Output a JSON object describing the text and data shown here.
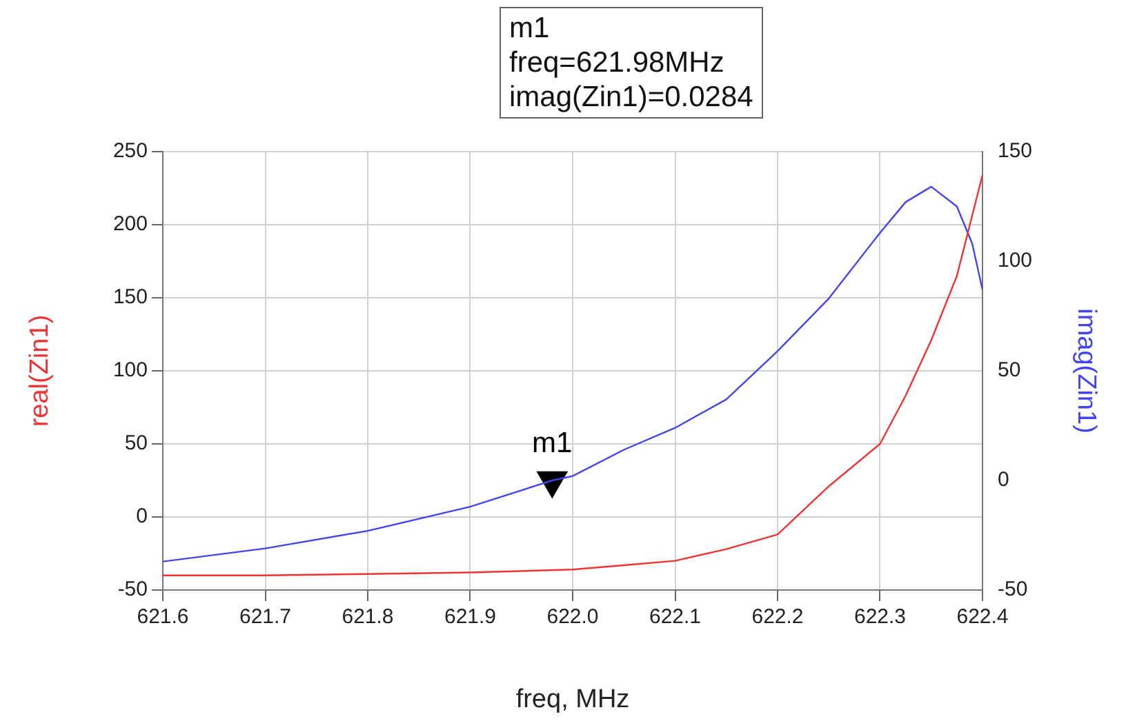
{
  "chart_data": {
    "type": "line",
    "xlabel": "freq, MHz",
    "ylabel": "real(Zin1)",
    "y2label": "imag(Zin1)",
    "xlim": [
      621.6,
      622.4
    ],
    "xticks": [
      621.6,
      621.7,
      621.8,
      621.9,
      {
        "value": 622.0,
        "label": "622.0"
      },
      622.1,
      622.2,
      622.3,
      622.4
    ],
    "ylim": [
      -50,
      250
    ],
    "yticks": [
      -50,
      0,
      50,
      100,
      150,
      200,
      250
    ],
    "y2lim": [
      -50,
      150
    ],
    "y2ticks": [
      -50,
      0,
      50,
      100,
      150
    ],
    "grid": true,
    "legend": false,
    "marker": "none",
    "line_style": "solid",
    "series": [
      {
        "color": "#ee3333",
        "axis": "y",
        "x": [
          621.6,
          621.7,
          621.8,
          621.9,
          622.0,
          622.05,
          622.1,
          622.15,
          622.2,
          622.25,
          622.3,
          622.325,
          622.35,
          622.375,
          622.4
        ],
        "values": [
          -40,
          -40,
          -39,
          -38,
          -36,
          -33,
          -30,
          -22,
          -12,
          21,
          50,
          83,
          121,
          165,
          234
        ]
      },
      {
        "color": "#4444ee",
        "axis": "y2",
        "x": [
          621.6,
          621.7,
          621.8,
          621.9,
          621.98,
          622.0,
          622.05,
          622.1,
          622.15,
          622.2,
          622.25,
          622.3,
          622.325,
          622.35,
          622.375,
          622.39,
          622.4
        ],
        "values": [
          -37,
          -31,
          -23,
          -12,
          0,
          2,
          14,
          24,
          37,
          59,
          83,
          113,
          127,
          134,
          125,
          108,
          87
        ]
      },
      {
        "name": "m1",
        "type": "scatter",
        "marker": "triangle",
        "color": "#000000",
        "axis": "y2",
        "x": [
          621.98
        ],
        "values": [
          0
        ]
      }
    ],
    "annotations": [
      "m1",
      "freq=621.98MHz",
      "imag(Zin1)=0.0284"
    ]
  }
}
